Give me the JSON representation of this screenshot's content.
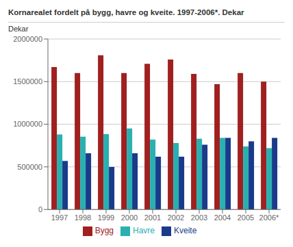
{
  "chart_data": {
    "type": "bar",
    "title": "Kornarealet fordelt på bygg, havre og kveite. 1997-2006*. Dekar",
    "ylabel": "Dekar",
    "categories": [
      "1997",
      "1998",
      "1999",
      "2000",
      "2001",
      "2002",
      "2003",
      "2004",
      "2005",
      "2006*"
    ],
    "series": [
      {
        "name": "Bygg",
        "color": "#a02020",
        "values": [
          1670000,
          1600000,
          1810000,
          1600000,
          1710000,
          1760000,
          1590000,
          1470000,
          1600000,
          1500000
        ]
      },
      {
        "name": "Havre",
        "color": "#2ab0b0",
        "values": [
          880000,
          855000,
          885000,
          950000,
          820000,
          780000,
          830000,
          840000,
          740000,
          720000
        ]
      },
      {
        "name": "Kveite",
        "color": "#1a3a8a",
        "values": [
          570000,
          660000,
          500000,
          660000,
          620000,
          620000,
          760000,
          840000,
          800000,
          840000
        ]
      }
    ],
    "ylim": [
      0,
      2000000
    ],
    "yticks": [
      0,
      500000,
      1000000,
      1500000,
      2000000
    ],
    "grid": true,
    "legend": "bottom"
  }
}
